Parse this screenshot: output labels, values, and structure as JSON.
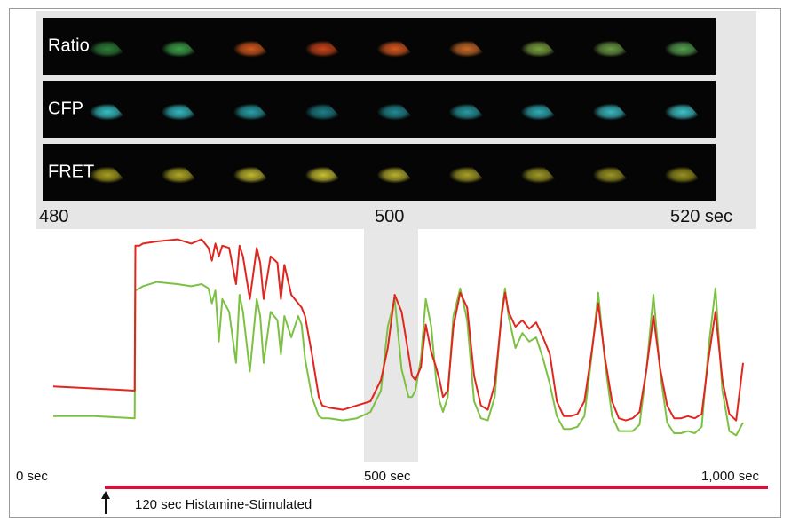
{
  "strips": [
    {
      "label": "Ratio",
      "frames": 9
    },
    {
      "label": "CFP",
      "frames": 9
    },
    {
      "label": "FRET",
      "frames": 9
    }
  ],
  "strip_colors": {
    "Ratio": [
      "#2e7f3a",
      "#3da04a",
      "#d25a1e",
      "#c9461a",
      "#d65a20",
      "#c86a28",
      "#7aa040",
      "#6a9a44",
      "#55a050"
    ],
    "CFP": [
      "#38c0c4",
      "#35b8bf",
      "#2aa0a8",
      "#1f7f88",
      "#238a93",
      "#2a9aa2",
      "#30adb5",
      "#3ab9c0",
      "#40c3c8"
    ],
    "FRET": [
      "#a8a020",
      "#b0a825",
      "#c0b830",
      "#c8c034",
      "#b8b030",
      "#a8a028",
      "#a09a25",
      "#9c9624",
      "#98921f"
    ]
  },
  "strip_ticks": [
    "480",
    "500",
    "520 sec"
  ],
  "axis_ticks": [
    "0 sec",
    "500 sec",
    "1,000 sec"
  ],
  "stimulus_label": "120 sec Histamine-Stimulated",
  "chart_data": {
    "type": "line",
    "x_unit": "sec",
    "xlim": [
      0,
      1000
    ],
    "ylim": [
      0,
      1
    ],
    "highlight_range": [
      480,
      520
    ],
    "stimulus_start": 120,
    "series": [
      {
        "color": "#e0261e",
        "x": [
          0,
          60,
          118,
          119,
          125,
          130,
          150,
          180,
          200,
          215,
          225,
          230,
          235,
          240,
          245,
          255,
          265,
          270,
          275,
          285,
          295,
          300,
          305,
          315,
          325,
          330,
          335,
          345,
          355,
          360,
          365,
          375,
          385,
          390,
          400,
          420,
          440,
          460,
          475,
          485,
          495,
          505,
          515,
          520,
          525,
          533,
          540,
          548,
          555,
          560,
          565,
          572,
          580,
          590,
          600,
          610,
          620,
          630,
          640,
          650,
          655,
          660,
          670,
          680,
          690,
          700,
          710,
          720,
          730,
          740,
          750,
          760,
          770,
          780,
          790,
          800,
          810,
          820,
          830,
          840,
          850,
          860,
          870,
          880,
          890,
          900,
          910,
          920,
          930,
          940,
          950,
          960,
          970,
          980,
          990,
          1000
        ],
        "y": [
          0.27,
          0.26,
          0.25,
          0.93,
          0.93,
          0.94,
          0.95,
          0.96,
          0.94,
          0.96,
          0.92,
          0.86,
          0.94,
          0.88,
          0.93,
          0.92,
          0.75,
          0.93,
          0.88,
          0.68,
          0.92,
          0.85,
          0.68,
          0.88,
          0.85,
          0.68,
          0.84,
          0.7,
          0.66,
          0.64,
          0.6,
          0.42,
          0.22,
          0.18,
          0.17,
          0.16,
          0.18,
          0.2,
          0.3,
          0.45,
          0.7,
          0.62,
          0.42,
          0.32,
          0.3,
          0.36,
          0.56,
          0.43,
          0.36,
          0.3,
          0.22,
          0.25,
          0.55,
          0.71,
          0.64,
          0.32,
          0.18,
          0.16,
          0.28,
          0.6,
          0.71,
          0.62,
          0.55,
          0.58,
          0.54,
          0.57,
          0.5,
          0.42,
          0.2,
          0.13,
          0.13,
          0.14,
          0.2,
          0.42,
          0.66,
          0.4,
          0.2,
          0.12,
          0.11,
          0.12,
          0.15,
          0.35,
          0.6,
          0.35,
          0.18,
          0.12,
          0.12,
          0.13,
          0.12,
          0.14,
          0.4,
          0.62,
          0.3,
          0.14,
          0.11,
          0.38
        ]
      },
      {
        "color": "#7cc142",
        "x": [
          0,
          60,
          118,
          119,
          125,
          130,
          150,
          180,
          200,
          215,
          225,
          230,
          235,
          240,
          245,
          255,
          265,
          270,
          275,
          285,
          295,
          300,
          305,
          315,
          325,
          330,
          335,
          345,
          355,
          360,
          365,
          375,
          385,
          390,
          400,
          420,
          440,
          460,
          475,
          485,
          495,
          505,
          515,
          520,
          525,
          533,
          540,
          548,
          555,
          560,
          565,
          572,
          580,
          590,
          600,
          610,
          620,
          630,
          640,
          650,
          655,
          660,
          670,
          680,
          690,
          700,
          710,
          720,
          730,
          740,
          750,
          760,
          770,
          780,
          790,
          800,
          810,
          820,
          830,
          840,
          850,
          860,
          870,
          880,
          890,
          900,
          910,
          920,
          930,
          940,
          950,
          960,
          970,
          980,
          990,
          1000
        ],
        "y": [
          0.13,
          0.13,
          0.12,
          0.72,
          0.73,
          0.74,
          0.76,
          0.75,
          0.74,
          0.75,
          0.73,
          0.66,
          0.72,
          0.48,
          0.68,
          0.62,
          0.38,
          0.7,
          0.62,
          0.34,
          0.68,
          0.6,
          0.38,
          0.62,
          0.58,
          0.42,
          0.6,
          0.5,
          0.6,
          0.56,
          0.4,
          0.22,
          0.13,
          0.12,
          0.12,
          0.11,
          0.12,
          0.15,
          0.25,
          0.55,
          0.68,
          0.35,
          0.22,
          0.22,
          0.25,
          0.4,
          0.68,
          0.55,
          0.3,
          0.2,
          0.15,
          0.22,
          0.6,
          0.73,
          0.58,
          0.2,
          0.12,
          0.11,
          0.22,
          0.62,
          0.73,
          0.6,
          0.45,
          0.52,
          0.48,
          0.5,
          0.4,
          0.28,
          0.13,
          0.07,
          0.07,
          0.08,
          0.13,
          0.4,
          0.71,
          0.38,
          0.13,
          0.06,
          0.06,
          0.06,
          0.09,
          0.35,
          0.7,
          0.33,
          0.1,
          0.05,
          0.05,
          0.06,
          0.05,
          0.08,
          0.45,
          0.73,
          0.25,
          0.06,
          0.04,
          0.1
        ]
      }
    ]
  }
}
